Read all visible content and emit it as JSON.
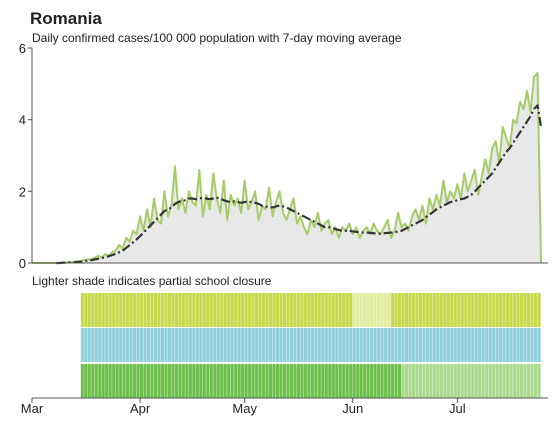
{
  "chart_data": {
    "type": "line",
    "title": "Romania",
    "subtitle": "Daily confirmed cases/100 000 population with 7-day moving average",
    "annotation": "Lighter shade indicates partial school closure",
    "x": [
      0,
      1,
      2,
      3,
      4,
      5,
      6,
      7,
      8,
      9,
      10,
      11,
      12,
      13,
      14,
      15,
      16,
      17,
      18,
      19,
      20,
      21,
      22,
      23,
      24,
      25,
      26,
      27,
      28,
      29,
      30,
      31,
      32,
      33,
      34,
      35,
      36,
      37,
      38,
      39,
      40,
      41,
      42,
      43,
      44,
      45,
      46,
      47,
      48,
      49,
      50,
      51,
      52,
      53,
      54,
      55,
      56,
      57,
      58,
      59,
      60,
      61,
      62,
      63,
      64,
      65,
      66,
      67,
      68,
      69,
      70,
      71,
      72,
      73,
      74,
      75,
      76,
      77,
      78,
      79,
      80,
      81,
      82,
      83,
      84,
      85,
      86,
      87,
      88,
      89,
      90,
      91,
      92,
      93,
      94,
      95,
      96,
      97,
      98,
      99,
      100,
      101,
      102,
      103,
      104,
      105,
      106,
      107,
      108,
      109,
      110,
      111,
      112,
      113,
      114,
      115,
      116,
      117,
      118,
      119,
      120,
      121,
      122,
      123,
      124,
      125,
      126,
      127,
      128,
      129,
      130,
      131,
      132,
      133,
      134,
      135,
      136,
      137,
      138,
      139,
      140,
      141,
      142,
      143,
      144,
      145,
      146
    ],
    "series": [
      {
        "color": "#a6cc6a",
        "values": [
          0,
          0,
          0,
          0,
          0,
          0,
          0,
          0,
          0,
          0,
          0.02,
          0.02,
          0.03,
          0.05,
          0.05,
          0.08,
          0.1,
          0.1,
          0.15,
          0.2,
          0.15,
          0.25,
          0.2,
          0.3,
          0.35,
          0.5,
          0.4,
          0.7,
          0.6,
          0.9,
          0.8,
          1.3,
          0.9,
          1.5,
          1.0,
          1.8,
          1.2,
          1.1,
          2.0,
          1.3,
          1.6,
          2.7,
          1.5,
          1.8,
          1.4,
          2.0,
          1.7,
          1.6,
          2.6,
          1.3,
          1.9,
          1.5,
          2.5,
          1.8,
          1.4,
          2.3,
          1.2,
          1.9,
          1.6,
          1.8,
          1.4,
          2.3,
          1.5,
          1.7,
          2.0,
          1.2,
          1.6,
          1.5,
          2.1,
          1.3,
          1.7,
          2.0,
          1.4,
          1.2,
          1.5,
          1.8,
          1.1,
          1.3,
          1.0,
          0.8,
          1.2,
          1.0,
          1.4,
          0.9,
          1.1,
          1.2,
          0.8,
          1.0,
          0.7,
          1.0,
          0.9,
          1.1,
          0.8,
          1.0,
          0.7,
          0.9,
          1.0,
          0.8,
          1.1,
          0.9,
          0.8,
          1.0,
          1.2,
          0.7,
          0.9,
          1.4,
          1.0,
          1.1,
          0.9,
          1.3,
          1.5,
          1.2,
          1.6,
          1.1,
          1.8,
          1.5,
          1.9,
          1.6,
          2.3,
          1.7,
          2.0,
          1.8,
          2.2,
          1.8,
          2.5,
          2.0,
          2.3,
          2.6,
          1.9,
          2.4,
          2.9,
          2.5,
          3.2,
          3.4,
          2.8,
          3.8,
          3.5,
          3.2,
          4.0,
          3.9,
          4.5,
          4.3,
          4.8,
          4.2,
          5.2,
          5.3,
          0
        ]
      },
      {
        "color": "#333333",
        "dashed": true,
        "values": [
          null,
          null,
          null,
          null,
          null,
          null,
          null,
          0,
          0,
          0.01,
          0.01,
          0.02,
          0.02,
          0.03,
          0.04,
          0.05,
          0.07,
          0.08,
          0.1,
          0.12,
          0.14,
          0.16,
          0.19,
          0.22,
          0.26,
          0.3,
          0.34,
          0.42,
          0.5,
          0.58,
          0.66,
          0.75,
          0.85,
          0.95,
          1.05,
          1.15,
          1.25,
          1.35,
          1.45,
          1.5,
          1.55,
          1.65,
          1.7,
          1.75,
          1.75,
          1.8,
          1.8,
          1.78,
          1.8,
          1.82,
          1.8,
          1.78,
          1.8,
          1.82,
          1.8,
          1.75,
          1.72,
          1.7,
          1.72,
          1.7,
          1.68,
          1.7,
          1.72,
          1.7,
          1.68,
          1.65,
          1.6,
          1.58,
          1.55,
          1.55,
          1.58,
          1.6,
          1.58,
          1.55,
          1.5,
          1.45,
          1.4,
          1.35,
          1.3,
          1.25,
          1.2,
          1.15,
          1.1,
          1.05,
          1.0,
          1.0,
          0.98,
          0.95,
          0.92,
          0.9,
          0.9,
          0.9,
          0.88,
          0.87,
          0.86,
          0.85,
          0.85,
          0.84,
          0.83,
          0.82,
          0.82,
          0.83,
          0.84,
          0.85,
          0.86,
          0.88,
          0.9,
          0.95,
          1.0,
          1.05,
          1.1,
          1.15,
          1.2,
          1.28,
          1.35,
          1.42,
          1.5,
          1.55,
          1.6,
          1.65,
          1.7,
          1.72,
          1.75,
          1.78,
          1.8,
          1.85,
          1.9,
          2.0,
          2.1,
          2.2,
          2.3,
          2.4,
          2.5,
          2.65,
          2.8,
          2.95,
          3.1,
          3.2,
          3.35,
          3.5,
          3.65,
          3.8,
          3.95,
          4.1,
          4.3,
          4.4,
          3.8
        ]
      }
    ],
    "area_color": "#e8e8e8",
    "xlim": [
      0,
      148
    ],
    "xticks": [
      {
        "value": 0,
        "label": "Mar"
      },
      {
        "value": 31,
        "label": "Apr"
      },
      {
        "value": 61,
        "label": "May"
      },
      {
        "value": 92,
        "label": "Jun"
      },
      {
        "value": 122,
        "label": "Jul"
      }
    ],
    "ylim": [
      0,
      6
    ],
    "yticks": [
      0,
      2,
      4,
      6
    ],
    "closures": [
      {
        "segments": [
          {
            "start": 14,
            "end": 92,
            "color": "#c6da4c"
          },
          {
            "start": 92,
            "end": 103,
            "color": "#e2eca0"
          },
          {
            "start": 103,
            "end": 146,
            "color": "#c6da4c"
          }
        ]
      },
      {
        "segments": [
          {
            "start": 14,
            "end": 146,
            "color": "#8fd0dc"
          }
        ]
      },
      {
        "segments": [
          {
            "start": 14,
            "end": 106,
            "color": "#6cbf48"
          },
          {
            "start": 106,
            "end": 146,
            "color": "#a9d98c"
          }
        ]
      }
    ]
  }
}
